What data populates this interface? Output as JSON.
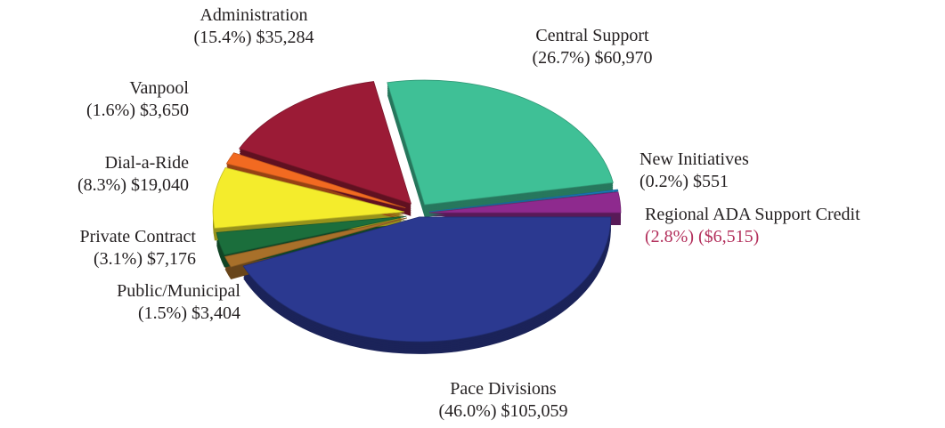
{
  "chart_data": {
    "type": "pie",
    "categories": [
      "Pace Divisions",
      "Public/Municipal",
      "Private Contract",
      "Dial-a-Ride",
      "Vanpool",
      "Administration",
      "Central Support",
      "New Initiatives",
      "Regional ADA Support Credit"
    ],
    "values": [
      46.0,
      1.5,
      3.1,
      8.3,
      1.6,
      15.4,
      26.7,
      0.2,
      2.8
    ],
    "value_labels": [
      "(46.0%)",
      "(1.5%)",
      "(3.1%)",
      "(8.3%)",
      "(1.6%)",
      "(15.4%)",
      "(26.7%)",
      "(0.2%)",
      "(2.8%)"
    ],
    "amounts": [
      105059,
      3404,
      7176,
      19040,
      3650,
      35284,
      60970,
      551,
      -6515
    ],
    "amount_labels": [
      "$105,059",
      "$3,404",
      "$7,176",
      "$19,040",
      "$3,650",
      "$35,284",
      "$60,970",
      "$551",
      "($6,515)"
    ],
    "colors": [
      "#2b3990",
      "#a8702a",
      "#1b6e3c",
      "#f4ec2c",
      "#f26a21",
      "#9b1b36",
      "#3fc096",
      "#1c7fc2",
      "#8e2a8e"
    ],
    "label_colors": [
      "#231f20",
      "#231f20",
      "#231f20",
      "#231f20",
      "#231f20",
      "#231f20",
      "#231f20",
      "#231f20",
      "#b3305c"
    ]
  }
}
